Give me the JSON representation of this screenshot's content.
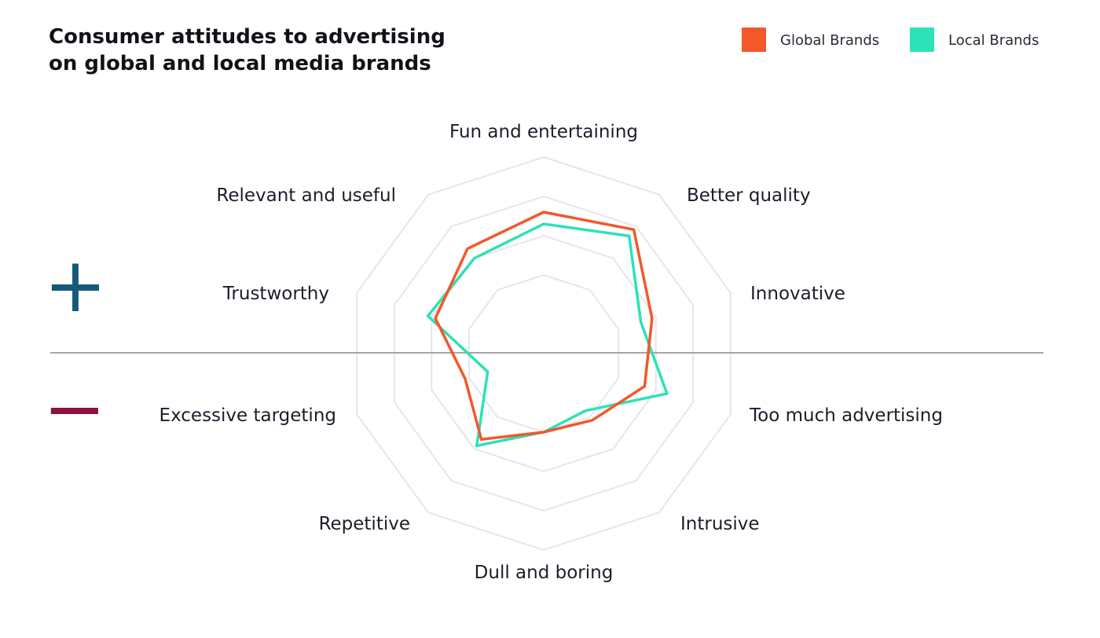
{
  "chart_data": {
    "type": "radar",
    "title": [
      "Consumer attitudes to advertising",
      "on global and local media brands"
    ],
    "categories": [
      "Fun and entertaining",
      "Better quality",
      "Innovative",
      "Too much advertising",
      "Intrusive",
      "Dull and boring",
      "Repetitive",
      "Excessive targeting",
      "Trustworthy",
      "Relevant and useful"
    ],
    "rlim": [
      0,
      5
    ],
    "series": [
      {
        "name": "Global Brands",
        "color": "#f4572a",
        "values": [
          3.6,
          3.9,
          2.9,
          2.7,
          2.1,
          2.0,
          2.7,
          2.1,
          2.9,
          3.3
        ]
      },
      {
        "name": "Local Brands",
        "color": "#2de2b6",
        "values": [
          3.3,
          3.7,
          2.6,
          3.3,
          1.8,
          2.0,
          2.9,
          1.5,
          3.1,
          3.0
        ]
      }
    ],
    "positive_marker": "+",
    "negative_marker": "−",
    "marker_colors": {
      "positive": "#145a78",
      "negative": "#8c1040"
    },
    "grid_color": "#e7e5ec",
    "divider_color": "#a9a2aa"
  }
}
